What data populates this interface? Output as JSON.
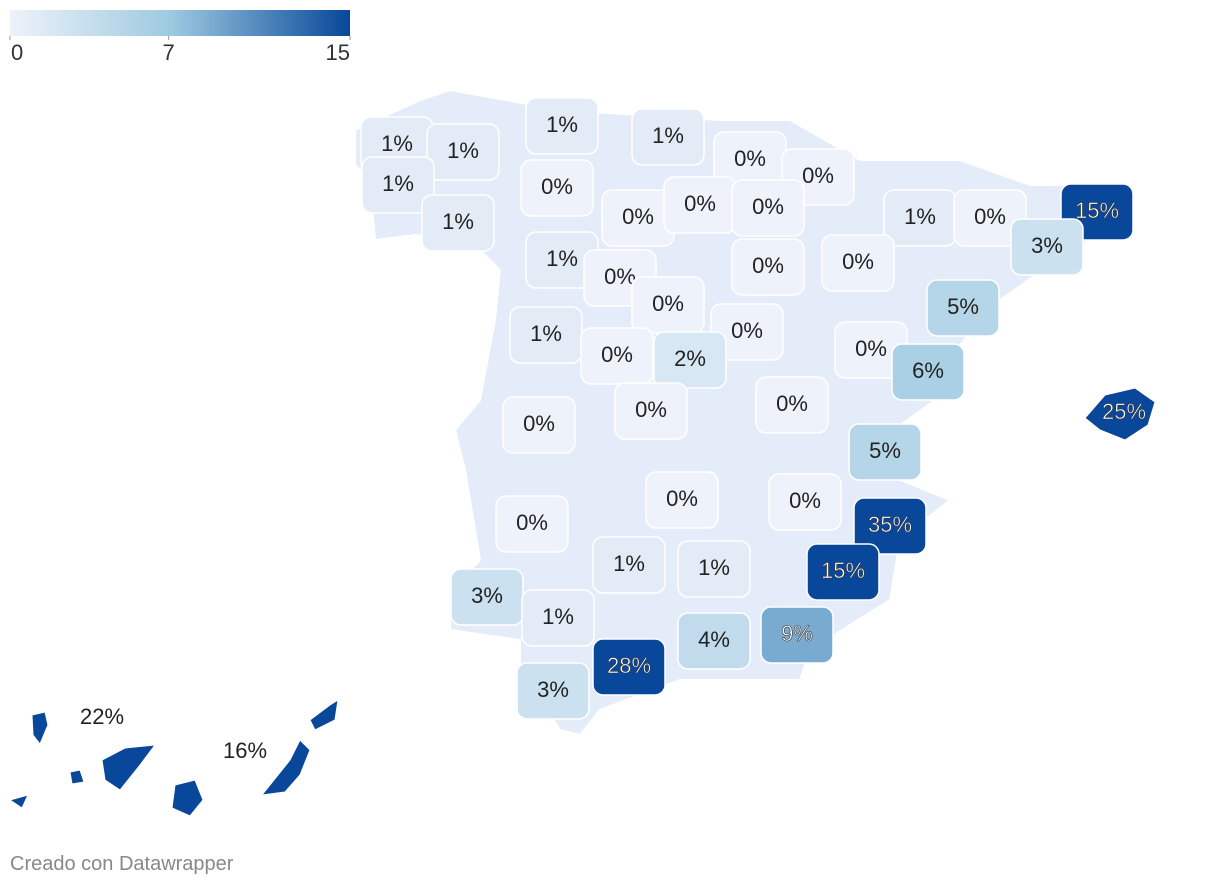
{
  "chart_data": {
    "type": "choropleth",
    "values": [
      1,
      1,
      1,
      1,
      1,
      0,
      0,
      0,
      1,
      0,
      0,
      0,
      1,
      0,
      15,
      3,
      1,
      0,
      0,
      0,
      0,
      5,
      1,
      0,
      0,
      2,
      0,
      6,
      0,
      0,
      0,
      5,
      0,
      0,
      0,
      35,
      1,
      1,
      15,
      3,
      1,
      9,
      4,
      28,
      3,
      25,
      22,
      16
    ],
    "value_labels": [
      "1%",
      "1%",
      "1%",
      "1%",
      "1%",
      "0%",
      "0%",
      "0%",
      "1%",
      "0%",
      "0%",
      "0%",
      "1%",
      "0%",
      "15%",
      "3%",
      "1%",
      "0%",
      "0%",
      "0%",
      "0%",
      "5%",
      "1%",
      "0%",
      "0%",
      "2%",
      "0%",
      "6%",
      "0%",
      "0%",
      "0%",
      "5%",
      "0%",
      "0%",
      "0%",
      "35%",
      "1%",
      "1%",
      "15%",
      "3%",
      "1%",
      "9%",
      "4%",
      "28%",
      "3%",
      "25%",
      "22%",
      "16%"
    ],
    "colors": [
      "#eef2fa",
      "#9ecae1",
      "#08479a"
    ],
    "legend_range": [
      0,
      15
    ],
    "legend_ticks": [
      0,
      7,
      15
    ],
    "credit": "Creado con Datawrapper"
  }
}
